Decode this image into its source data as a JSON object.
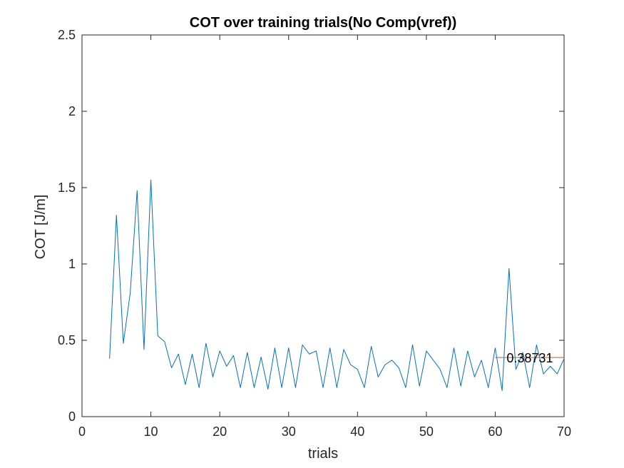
{
  "chart_data": {
    "type": "line",
    "title": "COT over training trials(No Comp(vref))",
    "xlabel": "trials",
    "ylabel": "COT [J/m]",
    "xlim": [
      0,
      70
    ],
    "ylim": [
      0,
      2.5
    ],
    "xticks": [
      0,
      10,
      20,
      30,
      40,
      50,
      60,
      70
    ],
    "yticks": [
      0,
      0.5,
      1,
      1.5,
      2,
      2.5
    ],
    "xtick_labels": [
      "0",
      "10",
      "20",
      "30",
      "40",
      "50",
      "60",
      "70"
    ],
    "ytick_labels": [
      "0",
      "0.5",
      "1",
      "1.5",
      "2",
      "2.5"
    ],
    "grid": false,
    "box": true,
    "series": [
      {
        "color": "#0072BD",
        "x": [
          4,
          5,
          6,
          7,
          8,
          9,
          10,
          11,
          12,
          13,
          14,
          15,
          16,
          17,
          18,
          19,
          20,
          21,
          22,
          23,
          24,
          25,
          26,
          27,
          28,
          29,
          30,
          31,
          32,
          33,
          34,
          35,
          36,
          37,
          38,
          39,
          40,
          41,
          42,
          43,
          44,
          45,
          46,
          47,
          48,
          49,
          50,
          51,
          52,
          53,
          54,
          55,
          56,
          57,
          58,
          59,
          60,
          61,
          62,
          63,
          64,
          65,
          66,
          67,
          68,
          69,
          70
        ],
        "y": [
          0.38,
          1.32,
          0.48,
          0.81,
          1.48,
          0.44,
          1.55,
          0.53,
          0.49,
          0.32,
          0.41,
          0.21,
          0.41,
          0.19,
          0.48,
          0.26,
          0.43,
          0.33,
          0.4,
          0.19,
          0.42,
          0.19,
          0.39,
          0.18,
          0.45,
          0.19,
          0.45,
          0.19,
          0.47,
          0.41,
          0.43,
          0.19,
          0.45,
          0.19,
          0.44,
          0.34,
          0.31,
          0.19,
          0.46,
          0.26,
          0.34,
          0.37,
          0.32,
          0.19,
          0.47,
          0.2,
          0.43,
          0.37,
          0.31,
          0.19,
          0.45,
          0.2,
          0.43,
          0.26,
          0.37,
          0.19,
          0.45,
          0.17,
          0.97,
          0.31,
          0.42,
          0.19,
          0.47,
          0.28,
          0.33,
          0.28,
          0.38
        ]
      },
      {
        "color": "#D95319",
        "x": [
          60,
          70
        ],
        "y": [
          0.38731,
          0.38731
        ]
      }
    ],
    "annotations": [
      {
        "text": "0.38731",
        "x": 63,
        "y": 0.38731
      }
    ]
  }
}
